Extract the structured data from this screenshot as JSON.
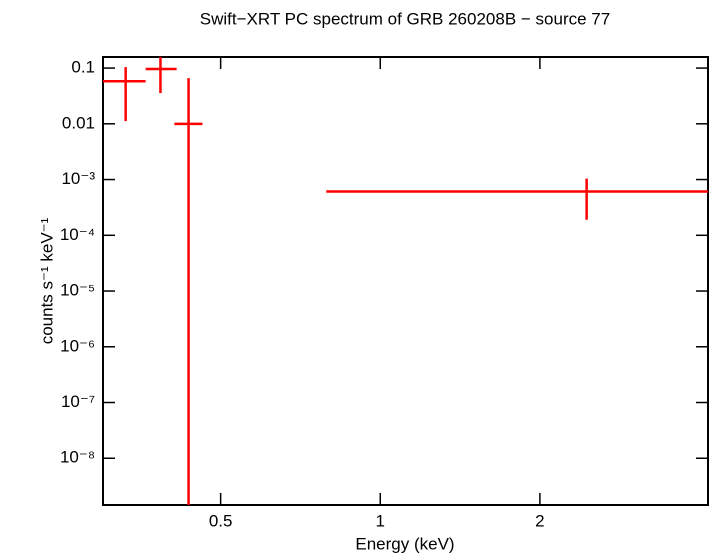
{
  "chart_data": {
    "type": "errorbar",
    "title": "Swift−XRT PC spectrum of GRB 260208B − source 77",
    "x_label": "Energy (keV)",
    "y_label": "counts s⁻¹ keV⁻¹",
    "xscale": "log",
    "yscale": "log",
    "xlim": [
      0.3,
      4.15
    ],
    "ylim": [
      1.45e-09,
      0.158
    ],
    "xticks": [
      0.5,
      1,
      2
    ],
    "yticks": [
      0.1,
      0.01,
      {
        "value": 0.001,
        "label": "10⁻³"
      },
      {
        "value": 0.0001,
        "label": "10⁻⁴"
      },
      {
        "value": 1e-05,
        "label": "10⁻⁵"
      },
      {
        "value": 1e-06,
        "label": "10⁻⁶"
      },
      {
        "value": 1e-07,
        "label": "10⁻⁷"
      },
      {
        "value": 1e-08,
        "label": "10⁻⁸"
      }
    ],
    "series": [
      {
        "color": "#ff0000",
        "x": [
          0.331,
          0.385,
          0.435,
          2.45
        ],
        "xlo": [
          0.3,
          0.361,
          0.409,
          0.791
        ],
        "xhi": [
          0.361,
          0.413,
          0.462,
          4.15
        ],
        "y": [
          0.058,
          0.096,
          0.01,
          0.00061
        ],
        "ylo": [
          0.0112,
          0.0356,
          1e-09,
          0.00019
        ],
        "yhi": [
          0.104,
          0.158,
          0.066,
          0.00104
        ]
      }
    ]
  }
}
